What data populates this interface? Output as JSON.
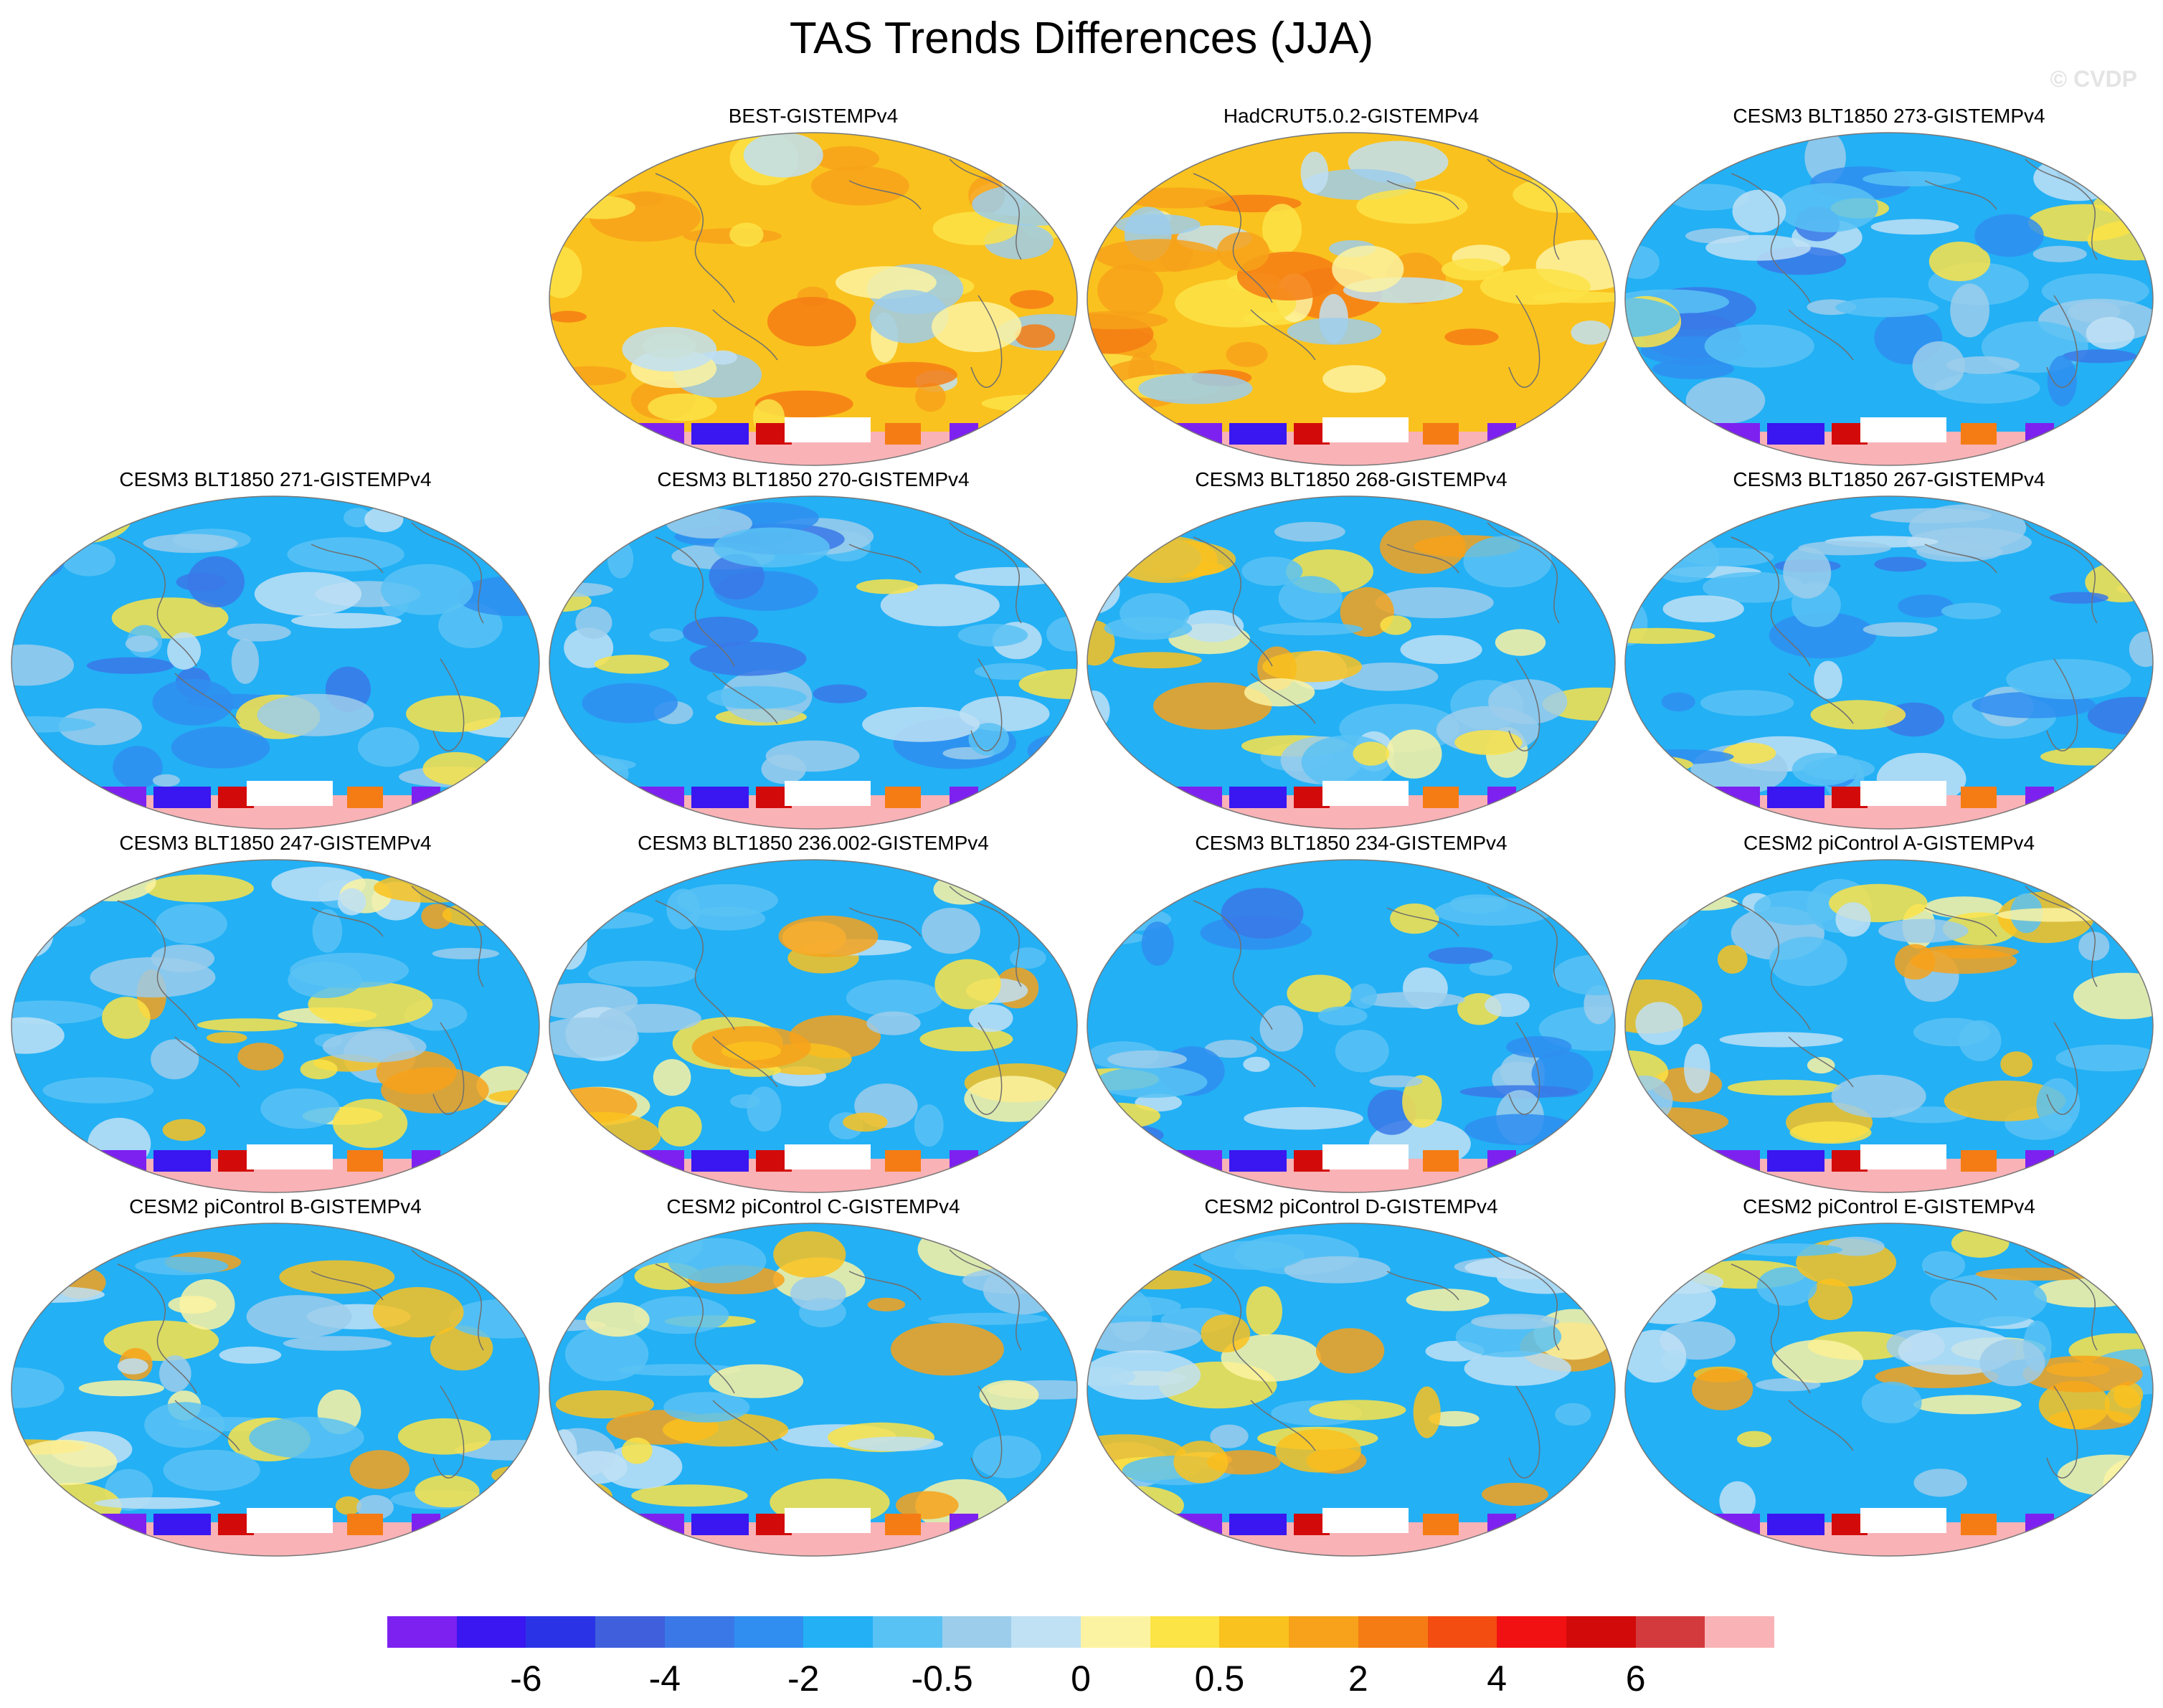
{
  "page": {
    "title": "TAS Trends Differences (JJA)",
    "watermark": "© CVDP"
  },
  "chart_data": {
    "type": "heatmap",
    "title": "TAS Trends Differences (JJA)",
    "colorbar": {
      "colors": [
        "#7d21f0",
        "#3a16f0",
        "#2b33e6",
        "#3f5fdc",
        "#3a78e8",
        "#2f8ef0",
        "#23b0f5",
        "#59c2f4",
        "#9ccdeb",
        "#c0e1f4",
        "#fcf3a2",
        "#fce346",
        "#fac21e",
        "#f7a21a",
        "#f57c14",
        "#f44d12",
        "#f21112",
        "#d20a0a",
        "#d33a3e",
        "#f9b2b6"
      ],
      "tick_labels": [
        "-6",
        "-4",
        "-2",
        "-0.5",
        "0",
        "0.5",
        "2",
        "4",
        "6"
      ],
      "tick_index": [
        2,
        4,
        6,
        8,
        10,
        12,
        14,
        16,
        18
      ]
    },
    "panels": [
      {
        "name": "BEST-GISTEMPv4",
        "bias": "warm"
      },
      {
        "name": "HadCRUT5.0.2-GISTEMPv4",
        "bias": "warm"
      },
      {
        "name": "CESM3 BLT1850 273-GISTEMPv4",
        "bias": "cool"
      },
      {
        "name": "CESM3 BLT1850 271-GISTEMPv4",
        "bias": "cool"
      },
      {
        "name": "CESM3 BLT1850 270-GISTEMPv4",
        "bias": "cool"
      },
      {
        "name": "CESM3 BLT1850 268-GISTEMPv4",
        "bias": "mixed"
      },
      {
        "name": "CESM3 BLT1850 267-GISTEMPv4",
        "bias": "cool"
      },
      {
        "name": "CESM3 BLT1850 247-GISTEMPv4",
        "bias": "mixed"
      },
      {
        "name": "CESM3 BLT1850 236.002-GISTEMPv4",
        "bias": "mixed"
      },
      {
        "name": "CESM3 BLT1850 234-GISTEMPv4",
        "bias": "cool"
      },
      {
        "name": "CESM2 piControl A-GISTEMPv4",
        "bias": "mixed"
      },
      {
        "name": "CESM2 piControl B-GISTEMPv4",
        "bias": "mixed"
      },
      {
        "name": "CESM2 piControl C-GISTEMPv4",
        "bias": "mixed"
      },
      {
        "name": "CESM2 piControl D-GISTEMPv4",
        "bias": "mixed"
      },
      {
        "name": "CESM2 piControl E-GISTEMPv4",
        "bias": "mixed"
      }
    ]
  }
}
